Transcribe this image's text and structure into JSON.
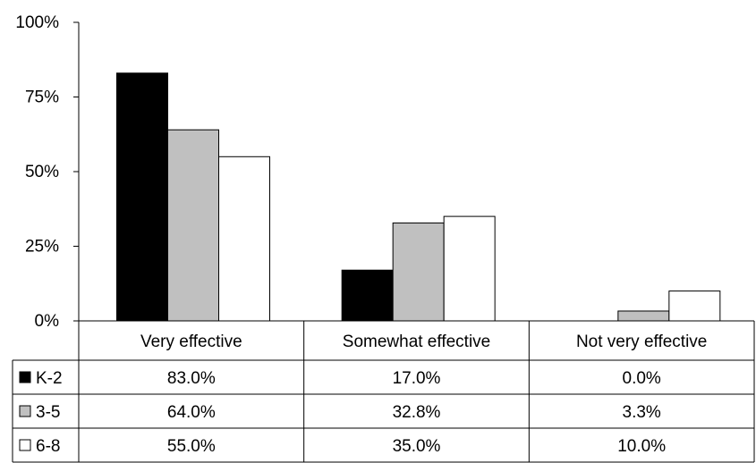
{
  "chart_data": {
    "type": "bar",
    "categories": [
      "Very effective",
      "Somewhat effective",
      "Not very effective"
    ],
    "series": [
      {
        "name": "K-2",
        "values": [
          83.0,
          17.0,
          0.0
        ],
        "labels": [
          "83.0%",
          "17.0%",
          "0.0%"
        ],
        "color": "#000000"
      },
      {
        "name": "3-5",
        "values": [
          64.0,
          32.8,
          3.3
        ],
        "labels": [
          "64.0%",
          "32.8%",
          "3.3%"
        ],
        "color": "#c0c0c0"
      },
      {
        "name": "6-8",
        "values": [
          55.0,
          35.0,
          10.0
        ],
        "labels": [
          "55.0%",
          "35.0%",
          "10.0%"
        ],
        "color": "#ffffff"
      }
    ],
    "yticks": [
      {
        "value": 0,
        "label": "0%"
      },
      {
        "value": 25,
        "label": "25%"
      },
      {
        "value": 50,
        "label": "50%"
      },
      {
        "value": 75,
        "label": "75%"
      },
      {
        "value": 100,
        "label": "100%"
      }
    ],
    "ylim": [
      0,
      100
    ],
    "grid": false,
    "data_table": true,
    "legend": "in data table"
  }
}
